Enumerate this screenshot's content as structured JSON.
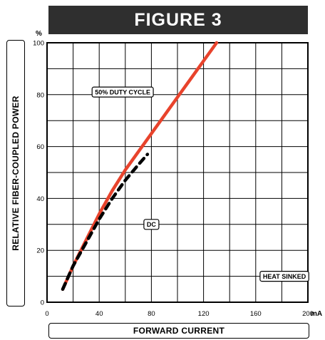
{
  "figure_title": "FIGURE 3",
  "chart_data": {
    "type": "line",
    "title": "",
    "xlabel": "FORWARD CURRENT",
    "ylabel": "RELATIVE FIBER-COUPLED POWER",
    "x_unit": "mA",
    "y_unit": "%",
    "xlim": [
      0,
      200
    ],
    "ylim": [
      0,
      100
    ],
    "x_ticks": [
      0,
      40,
      80,
      120,
      160,
      200
    ],
    "y_ticks": [
      0,
      20,
      40,
      60,
      80,
      100
    ],
    "grid": true,
    "series": [
      {
        "name": "50% DUTY CYCLE",
        "color": "#e8432c",
        "style": "solid",
        "x": [
          12,
          20,
          30,
          40,
          50,
          60,
          70,
          80,
          90,
          100,
          110,
          120,
          130
        ],
        "y": [
          5,
          14,
          24,
          34,
          43,
          51,
          58,
          65,
          72,
          79,
          86,
          93,
          100
        ]
      },
      {
        "name": "DC",
        "color": "#000000",
        "style": "dashed",
        "x": [
          12,
          20,
          30,
          40,
          50,
          60,
          70,
          77
        ],
        "y": [
          5,
          14,
          23,
          32,
          40,
          47,
          53,
          57
        ]
      }
    ],
    "annotations": [
      {
        "text": "50% DUTY CYCLE",
        "x": 58,
        "y": 81
      },
      {
        "text": "DC",
        "x": 80,
        "y": 30
      },
      {
        "text": "HEAT SINKED",
        "x": 182,
        "y": 10
      }
    ]
  }
}
